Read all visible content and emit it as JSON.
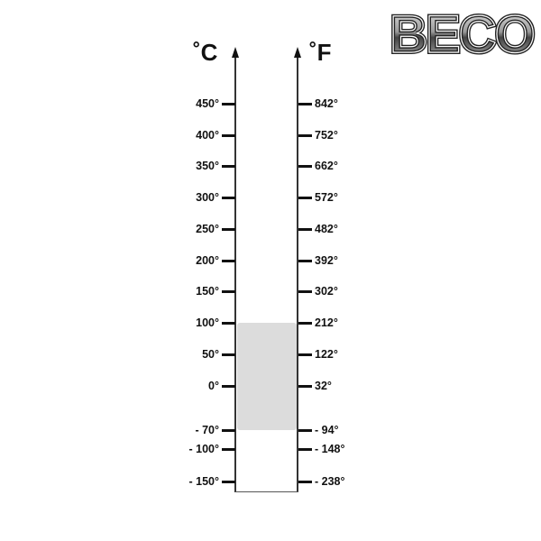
{
  "logo": {
    "text": "BECO"
  },
  "celsius": {
    "unit": "˚C",
    "ticks": [
      "450°",
      "400°",
      "350°",
      "300°",
      "250°",
      "200°",
      "150°",
      "100°",
      "50°",
      "0°",
      "- 70°",
      "- 100°",
      "- 150°"
    ]
  },
  "fahrenheit": {
    "unit": "˚F",
    "ticks": [
      "842°",
      "752°",
      "662°",
      "572°",
      "482°",
      "392°",
      "302°",
      "212°",
      "122°",
      "32°",
      "- 94°",
      "- 148°",
      "- 238°"
    ]
  },
  "tick_values_c": [
    450,
    400,
    350,
    300,
    250,
    200,
    150,
    100,
    50,
    0,
    -70,
    -100,
    -150
  ],
  "highlighted_range_c": [
    -70,
    100
  ],
  "colors": {
    "range": "#dcdcdc",
    "axis": "#333333"
  }
}
